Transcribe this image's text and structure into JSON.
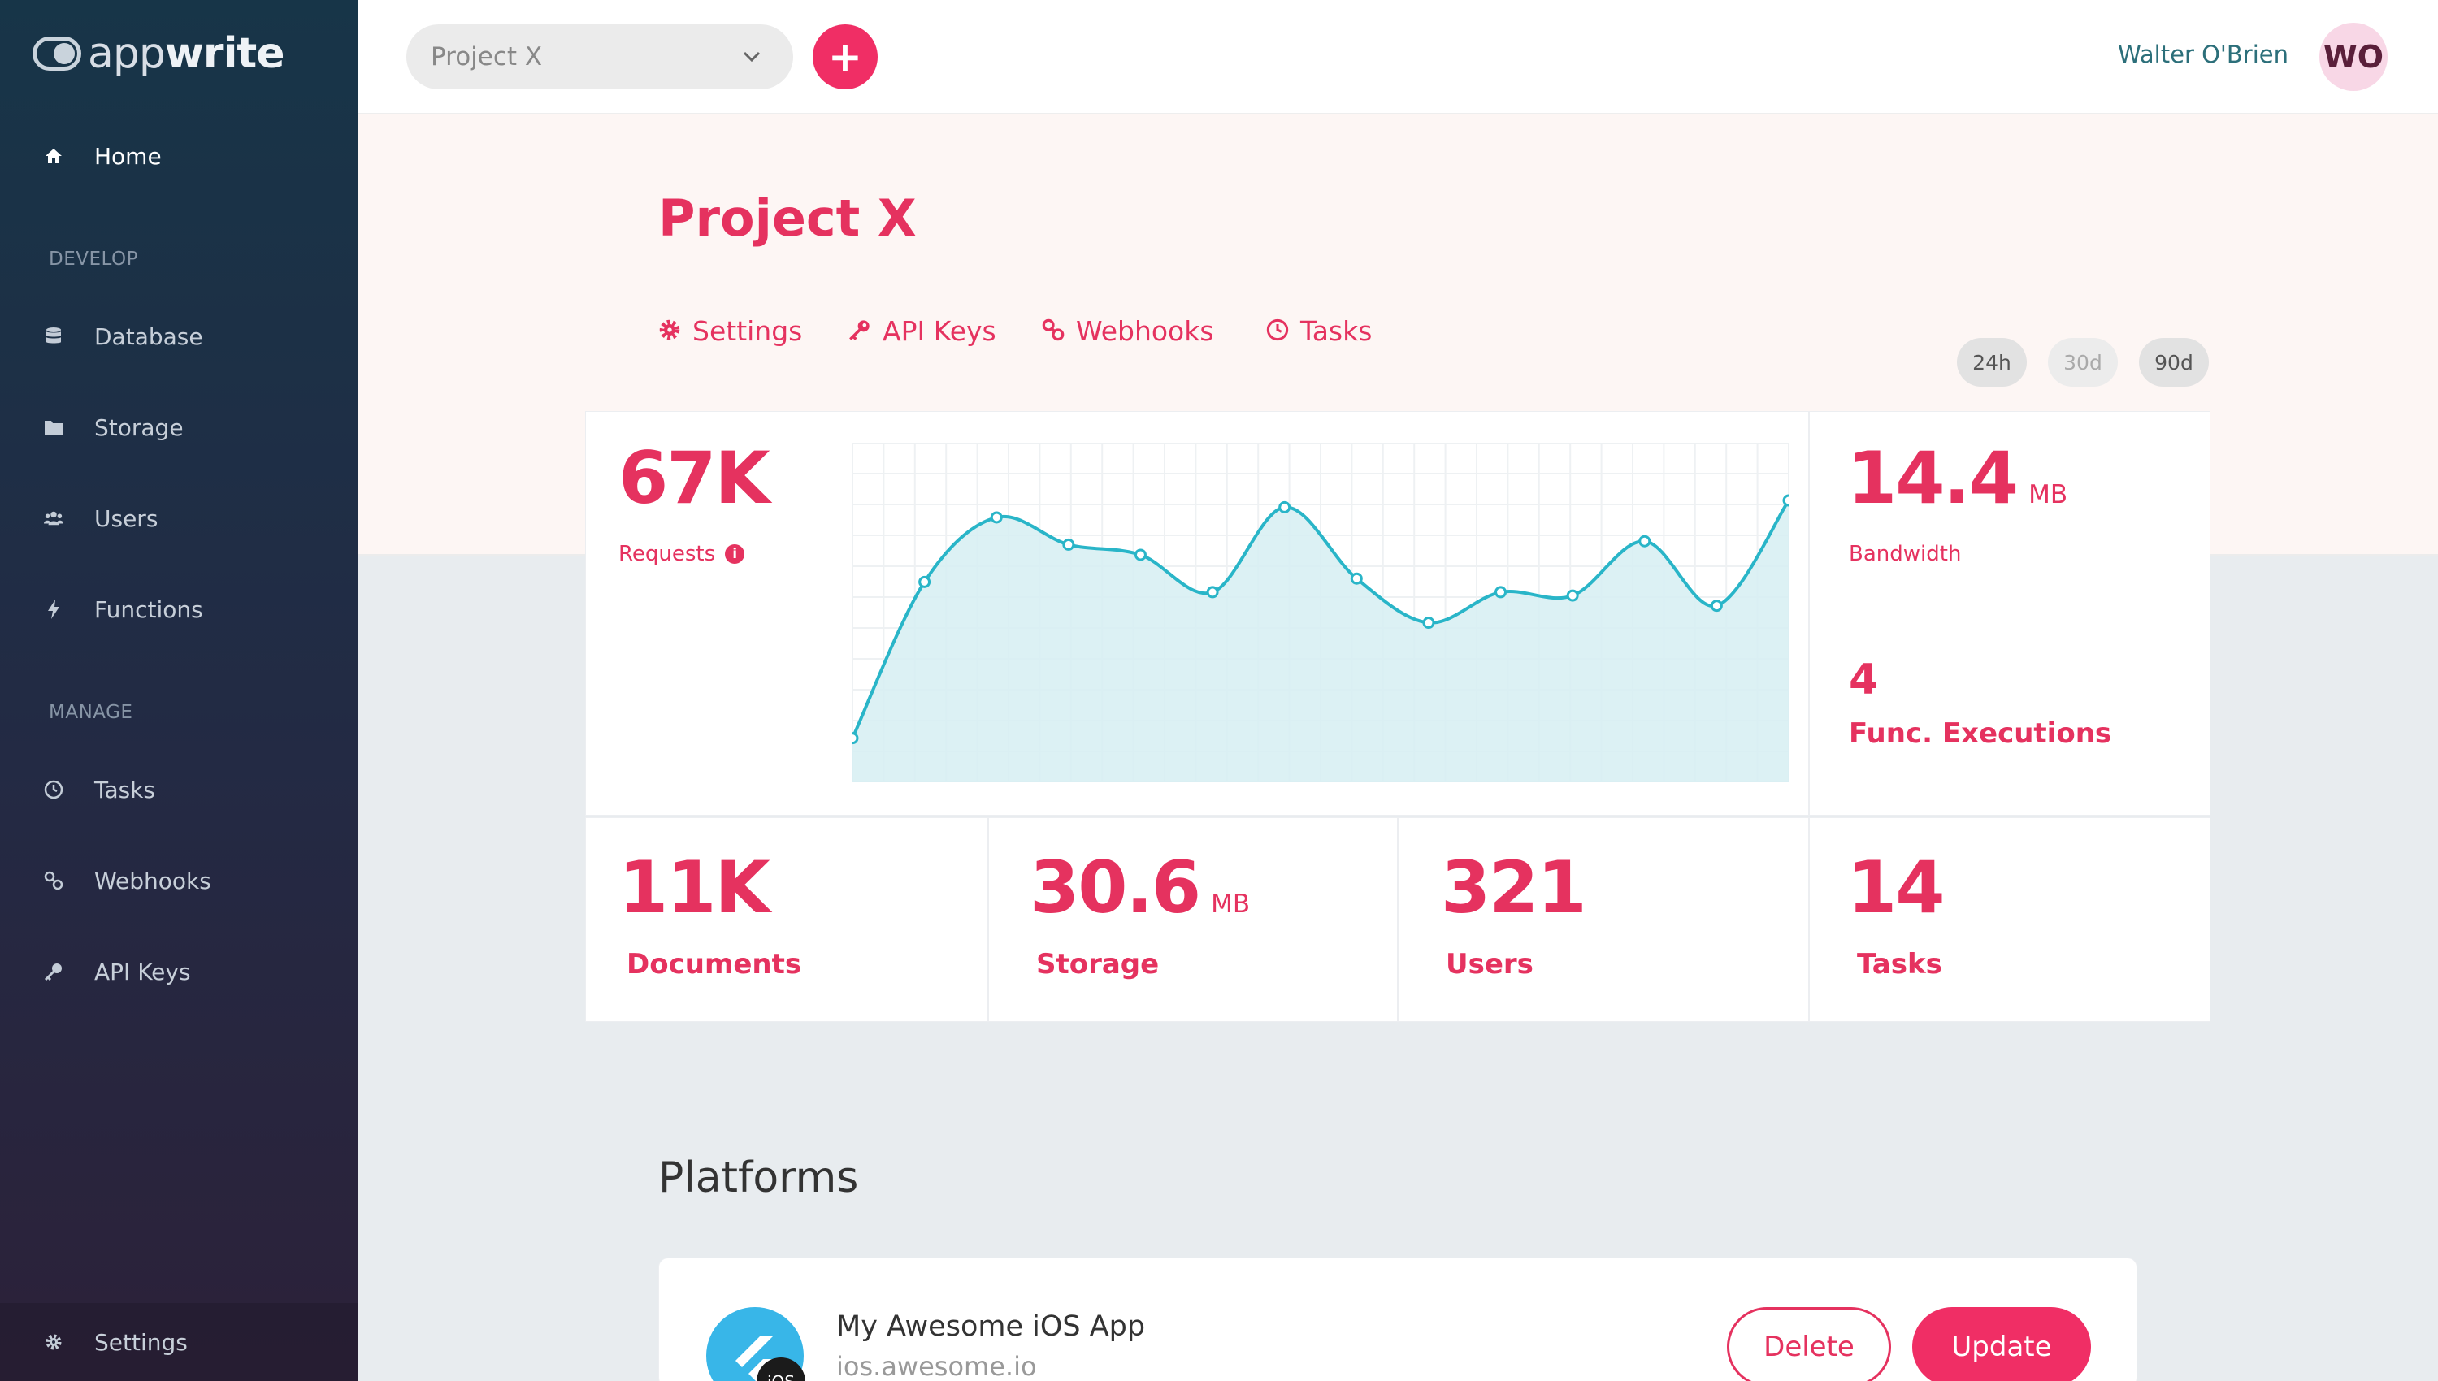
{
  "brand": {
    "logo_light": "app",
    "logo_bold": "write"
  },
  "sidebar": {
    "home": "Home",
    "develop_section": "DEVELOP",
    "develop": [
      "Database",
      "Storage",
      "Users",
      "Functions"
    ],
    "manage_section": "MANAGE",
    "manage": [
      "Tasks",
      "Webhooks",
      "API Keys"
    ],
    "settings": "Settings"
  },
  "topbar": {
    "project_select": "Project X",
    "add_button": "+",
    "user_name": "Walter O'Brien",
    "avatar_initials": "WO"
  },
  "page": {
    "title": "Project X",
    "tabs": [
      "Settings",
      "API Keys",
      "Webhooks",
      "Tasks"
    ],
    "ranges": [
      "24h",
      "30d",
      "90d"
    ]
  },
  "stats": {
    "requests_value": "67K",
    "requests_label": "Requests",
    "bandwidth_value": "14.4",
    "bandwidth_unit": "MB",
    "bandwidth_label": "Bandwidth",
    "executions_value": "4",
    "executions_label": "Func. Executions",
    "documents_value": "11K",
    "documents_label": "Documents",
    "storage_value": "30.6",
    "storage_unit": "MB",
    "storage_label": "Storage",
    "users_value": "321",
    "users_label": "Users",
    "tasks_value": "14",
    "tasks_label": "Tasks"
  },
  "chart_data": {
    "type": "area",
    "title": "",
    "x": [
      0,
      1,
      2,
      3,
      4,
      5,
      6,
      7,
      8,
      9,
      10,
      11,
      12,
      13
    ],
    "series": [
      {
        "values": [
          13,
          59,
          78,
          70,
          67,
          56,
          81,
          60,
          47,
          56,
          55,
          71,
          52,
          83
        ]
      }
    ],
    "ylim": [
      0,
      100
    ],
    "grid": true,
    "line_color": "#29b5c8",
    "fill_color": "#d6eef2"
  },
  "platforms": {
    "title": "Platforms",
    "items": [
      {
        "name": "My Awesome iOS App",
        "host": "ios.awesome.io",
        "badge": "iOS",
        "delete_label": "Delete",
        "update_label": "Update"
      }
    ]
  },
  "colors": {
    "accent": "#f02e65",
    "text_accent": "#e5325f",
    "chart_line": "#29b5c8"
  }
}
